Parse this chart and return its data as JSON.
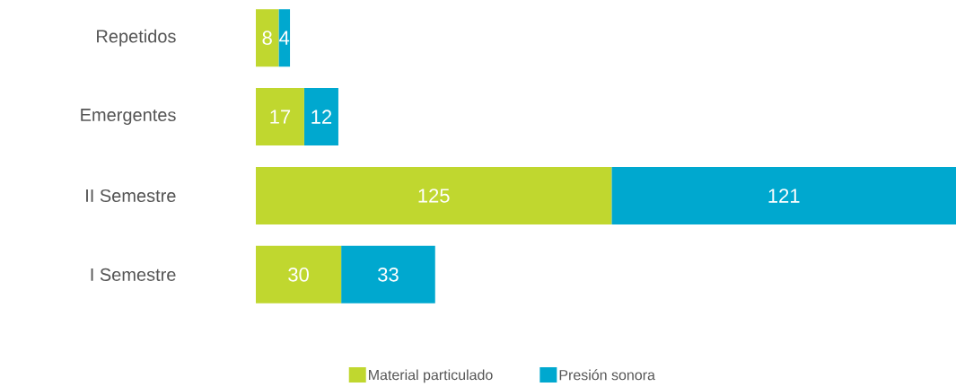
{
  "chart_data": {
    "type": "bar",
    "orientation": "horizontal",
    "stacked": true,
    "categories": [
      "Repetidos",
      "Emergentes",
      "II Semestre",
      "I Semestre"
    ],
    "series": [
      {
        "name": "Material particulado",
        "color": "#c0d72f",
        "values": [
          8,
          17,
          125,
          30
        ]
      },
      {
        "name": "Presión sonora",
        "color": "#00a8cf",
        "values": [
          4,
          12,
          121,
          33
        ]
      }
    ],
    "data_labels": true,
    "legend": "bottom"
  }
}
